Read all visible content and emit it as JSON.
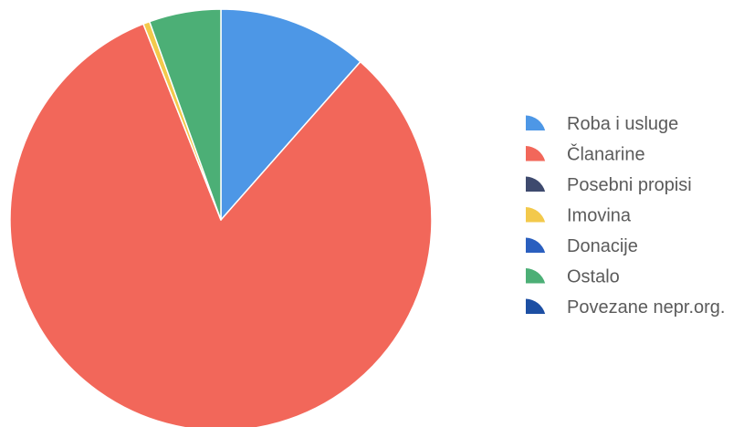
{
  "chart_data": {
    "type": "pie",
    "title": "",
    "legend_position": "right",
    "slices": [
      {
        "label": "Roba i usluge",
        "value": 11.5,
        "color": "#4d97e6",
        "icon": "pie-wedge-icon"
      },
      {
        "label": "Članarine",
        "value": 82.5,
        "color": "#f2675a",
        "icon": "pie-wedge-icon"
      },
      {
        "label": "Posebni propisi",
        "value": 0,
        "color": "#3e4a6e",
        "icon": "pie-wedge-icon"
      },
      {
        "label": "Imovina",
        "value": 0.5,
        "color": "#f3c94b",
        "icon": "pie-wedge-icon"
      },
      {
        "label": "Donacije",
        "value": 0,
        "color": "#2a5fbf",
        "icon": "pie-wedge-icon"
      },
      {
        "label": "Ostalo",
        "value": 5.5,
        "color": "#4caf76",
        "icon": "pie-wedge-icon"
      },
      {
        "label": "Povezane nepr.org.",
        "value": 0,
        "color": "#1d4fa3",
        "icon": "pie-wedge-icon"
      }
    ]
  }
}
